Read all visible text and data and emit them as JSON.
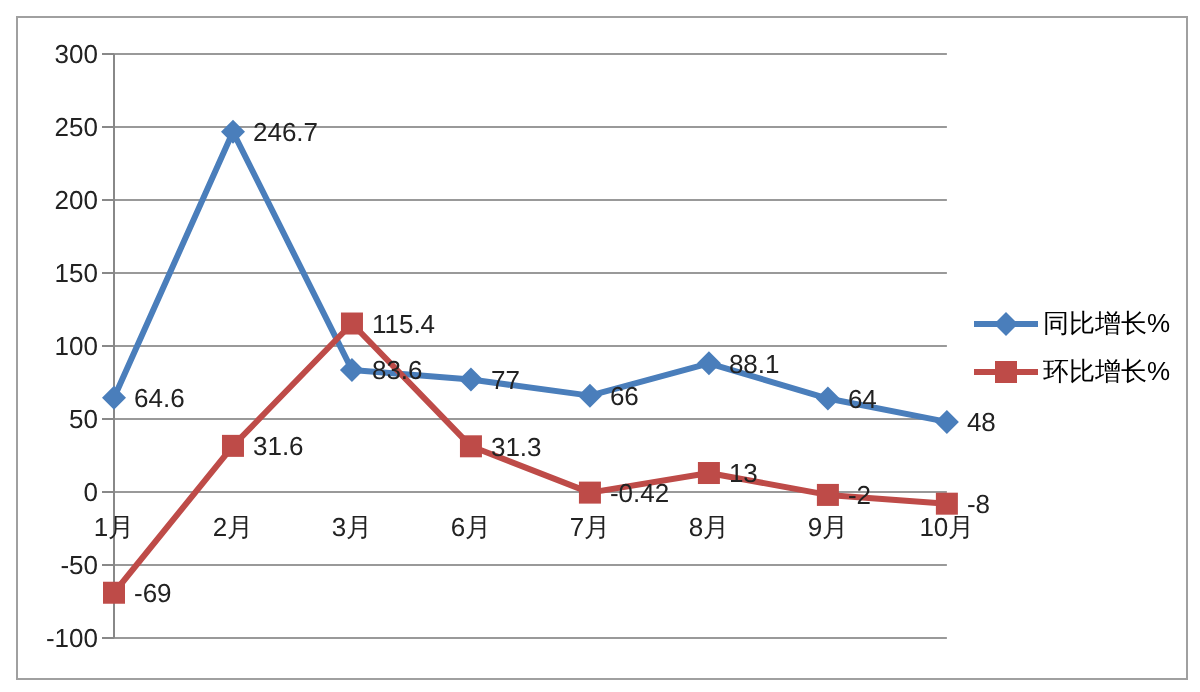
{
  "chart_data": {
    "type": "line",
    "categories": [
      "1月",
      "2月",
      "3月",
      "6月",
      "7月",
      "8月",
      "9月",
      "10月"
    ],
    "series": [
      {
        "name": "同比增长%",
        "color": "#4a7ebb",
        "marker": "diamond",
        "values": [
          64.6,
          246.7,
          83.6,
          77,
          66,
          88.1,
          64,
          48
        ]
      },
      {
        "name": "环比增长%",
        "color": "#be4b48",
        "marker": "square",
        "values": [
          -69,
          31.6,
          115.4,
          31.3,
          -0.42,
          13,
          -2,
          -8
        ]
      }
    ],
    "ylim": [
      -100,
      300
    ],
    "yticks": [
      -100,
      -50,
      0,
      50,
      100,
      150,
      200,
      250,
      300
    ],
    "grid": "y",
    "legend": "right",
    "data_labels": true
  }
}
